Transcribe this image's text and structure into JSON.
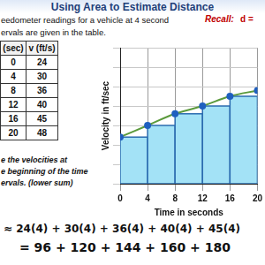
{
  "header": {
    "title": "Using Area to Estimate Distance"
  },
  "problem": {
    "lines": [
      "eedometer readings for a vehicle at 4 second",
      "ervals are given in the table."
    ],
    "recall": {
      "label": "Recall:",
      "formula": "d ="
    }
  },
  "table": {
    "columns": [
      "(sec)",
      "v (ft/s)"
    ],
    "rows": [
      [
        0,
        24
      ],
      [
        4,
        30
      ],
      [
        8,
        36
      ],
      [
        12,
        40
      ],
      [
        16,
        45
      ],
      [
        20,
        48
      ]
    ]
  },
  "instruction": [
    "e the velocities at",
    "e beginning of the time",
    "ervals.  (lower sum)"
  ],
  "work": [
    "≈ 24(4) + 30(4) + 36(4) + 40(4) + 45(4)",
    "= 96 + 120 + 144 + 160 + 180"
  ],
  "chart_data": {
    "type": "bar",
    "x_label": "Time in seconds",
    "y_label": "Velocity in ft/sec",
    "x": [
      0,
      4,
      8,
      12,
      16,
      20
    ],
    "series": [
      {
        "type": "bar",
        "color": "#a3e2f6",
        "values": [
          24,
          30,
          36,
          40,
          45,
          null
        ]
      },
      {
        "type": "line",
        "color": "#5b9a3c",
        "marker": "circle",
        "values": [
          24,
          30,
          36,
          40,
          45,
          48
        ]
      }
    ],
    "xlim": [
      0,
      20
    ],
    "xticks": [
      0,
      4,
      8,
      12,
      16,
      20
    ],
    "ylim": [
      0,
      70
    ],
    "yticks": [
      0,
      10,
      20,
      30,
      40,
      50,
      60,
      70
    ],
    "grid": true,
    "tick_labels": "x"
  }
}
